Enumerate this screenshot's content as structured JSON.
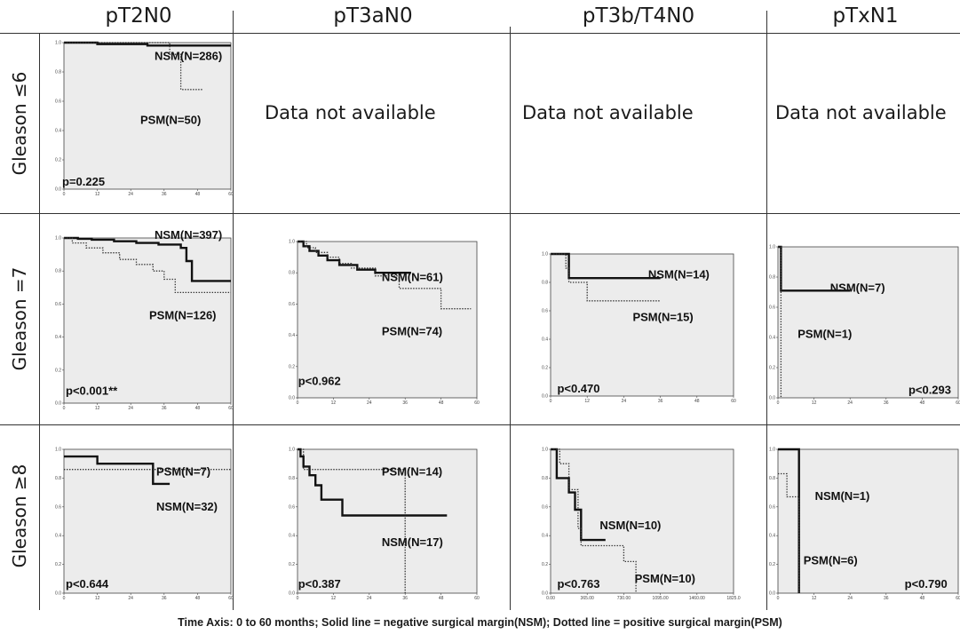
{
  "columns": [
    "pT2N0",
    "pT3aN0",
    "pT3b/T4N0",
    "pTxN1"
  ],
  "rows": [
    "Gleason ≤6",
    "Gleason =7",
    "Gleason ≥8"
  ],
  "not_available_text": "Data not available",
  "footer": "Time Axis: 0 to 60 months; Solid line = negative surgical margin(NSM); Dotted line = positive surgical margin(PSM)",
  "chart_data": [
    {
      "id": "r1c1",
      "type": "line",
      "row": "Gleason ≤6",
      "column": "pT2N0",
      "xlim": [
        0,
        60
      ],
      "ylim": [
        0,
        1
      ],
      "xticks": [
        "0",
        "12",
        "24",
        "36",
        "48",
        "60"
      ],
      "yticks": [
        "0.0",
        "0.2",
        "0.4",
        "0.6",
        "0.8",
        "1.0"
      ],
      "series": [
        {
          "name": "NSM(N=286)",
          "style": "solid",
          "steps": [
            [
              0,
              1.0
            ],
            [
              12,
              0.99
            ],
            [
              30,
              0.98
            ],
            [
              60,
              0.98
            ]
          ]
        },
        {
          "name": "PSM(N=50)",
          "style": "dotted",
          "steps": [
            [
              0,
              1.0
            ],
            [
              38,
              1.0
            ],
            [
              38,
              0.92
            ],
            [
              42,
              0.92
            ],
            [
              42,
              0.68
            ],
            [
              50,
              0.68
            ]
          ]
        }
      ],
      "pvalue": "p=0.225"
    },
    {
      "id": "r2c1",
      "type": "line",
      "row": "Gleason =7",
      "column": "pT2N0",
      "xlim": [
        0,
        60
      ],
      "ylim": [
        0,
        1
      ],
      "xticks": [
        "0",
        "12",
        "24",
        "36",
        "48",
        "60"
      ],
      "yticks": [
        "0.0",
        "0.2",
        "0.4",
        "0.6",
        "0.8",
        "1.0"
      ],
      "series": [
        {
          "name": "NSM(N=397)",
          "style": "solid",
          "steps": [
            [
              0,
              1.0
            ],
            [
              5,
              0.995
            ],
            [
              10,
              0.99
            ],
            [
              18,
              0.98
            ],
            [
              26,
              0.97
            ],
            [
              34,
              0.96
            ],
            [
              42,
              0.94
            ],
            [
              44,
              0.86
            ],
            [
              46,
              0.74
            ],
            [
              60,
              0.74
            ]
          ]
        },
        {
          "name": "PSM(N=126)",
          "style": "dotted",
          "steps": [
            [
              0,
              1.0
            ],
            [
              3,
              0.97
            ],
            [
              8,
              0.94
            ],
            [
              14,
              0.91
            ],
            [
              20,
              0.87
            ],
            [
              26,
              0.84
            ],
            [
              32,
              0.8
            ],
            [
              36,
              0.75
            ],
            [
              40,
              0.67
            ],
            [
              60,
              0.67
            ]
          ]
        }
      ],
      "pvalue": "p<0.001**"
    },
    {
      "id": "r2c2",
      "type": "line",
      "row": "Gleason =7",
      "column": "pT3aN0",
      "xlim": [
        0,
        60
      ],
      "ylim": [
        0,
        1
      ],
      "xticks": [
        "0",
        "12",
        "24",
        "36",
        "48",
        "60"
      ],
      "yticks": [
        "0.0",
        "0.2",
        "0.4",
        "0.6",
        "0.8",
        "1.0"
      ],
      "series": [
        {
          "name": "NSM(N=61)",
          "style": "solid",
          "steps": [
            [
              0,
              1.0
            ],
            [
              2,
              0.97
            ],
            [
              4,
              0.94
            ],
            [
              7,
              0.91
            ],
            [
              10,
              0.88
            ],
            [
              14,
              0.85
            ],
            [
              20,
              0.82
            ],
            [
              26,
              0.8
            ],
            [
              38,
              0.8
            ]
          ]
        },
        {
          "name": "PSM(N=74)",
          "style": "dotted",
          "steps": [
            [
              0,
              1.0
            ],
            [
              3,
              0.96
            ],
            [
              6,
              0.93
            ],
            [
              10,
              0.9
            ],
            [
              14,
              0.86
            ],
            [
              18,
              0.83
            ],
            [
              26,
              0.78
            ],
            [
              34,
              0.7
            ],
            [
              48,
              0.57
            ],
            [
              58,
              0.57
            ]
          ]
        }
      ],
      "pvalue": "p<0.962"
    },
    {
      "id": "r2c3",
      "type": "line",
      "row": "Gleason =7",
      "column": "pT3b/T4N0",
      "xlim": [
        0,
        60
      ],
      "ylim": [
        0,
        1
      ],
      "xticks": [
        "0",
        "12",
        "24",
        "36",
        "48",
        "60"
      ],
      "yticks": [
        "0.0",
        "0.2",
        "0.4",
        "0.6",
        "0.8",
        "1.0"
      ],
      "series": [
        {
          "name": "NSM(N=14)",
          "style": "solid",
          "steps": [
            [
              0,
              1.0
            ],
            [
              6,
              1.0
            ],
            [
              6,
              0.83
            ],
            [
              36,
              0.83
            ]
          ]
        },
        {
          "name": "PSM(N=15)",
          "style": "dotted",
          "steps": [
            [
              0,
              1.0
            ],
            [
              5,
              0.9
            ],
            [
              6,
              0.8
            ],
            [
              12,
              0.67
            ],
            [
              36,
              0.67
            ]
          ]
        }
      ],
      "pvalue": "p<0.470"
    },
    {
      "id": "r2c4",
      "type": "line",
      "row": "Gleason =7",
      "column": "pTxN1",
      "xlim": [
        0,
        60
      ],
      "ylim": [
        0,
        1
      ],
      "xticks": [
        "0",
        "12",
        "24",
        "36",
        "48",
        "60"
      ],
      "yticks": [
        "0.0",
        "0.2",
        "0.4",
        "0.6",
        "0.8",
        "1.0"
      ],
      "series": [
        {
          "name": "NSM(N=7)",
          "style": "solid",
          "steps": [
            [
              0,
              1.0
            ],
            [
              1,
              1.0
            ],
            [
              1,
              0.71
            ],
            [
              24,
              0.71
            ]
          ]
        },
        {
          "name": "PSM(N=1)",
          "style": "dotted",
          "steps": [
            [
              0,
              1.0
            ],
            [
              1,
              1.0
            ],
            [
              1,
              0.0
            ]
          ]
        }
      ],
      "pvalue": "p<0.293"
    },
    {
      "id": "r3c1",
      "type": "line",
      "row": "Gleason ≥8",
      "column": "pT2N0",
      "xlim": [
        0,
        60
      ],
      "ylim": [
        0,
        1
      ],
      "xticks": [
        "0",
        "12",
        "24",
        "36",
        "48",
        "60"
      ],
      "yticks": [
        "0.0",
        "0.2",
        "0.4",
        "0.6",
        "0.8",
        "1.0"
      ],
      "series": [
        {
          "name": "PSM(N=7)",
          "style": "dotted",
          "steps": [
            [
              0,
              0.86
            ],
            [
              60,
              0.86
            ]
          ]
        },
        {
          "name": "NSM(N=32)",
          "style": "solid",
          "steps": [
            [
              0,
              0.95
            ],
            [
              12,
              0.9
            ],
            [
              32,
              0.9
            ],
            [
              32,
              0.76
            ],
            [
              38,
              0.76
            ]
          ]
        }
      ],
      "pvalue": "p<0.644"
    },
    {
      "id": "r3c2",
      "type": "line",
      "row": "Gleason ≥8",
      "column": "pT3aN0",
      "xlim": [
        0,
        60
      ],
      "ylim": [
        0,
        1
      ],
      "xticks": [
        "0",
        "12",
        "24",
        "36",
        "48",
        "60"
      ],
      "yticks": [
        "0.0",
        "0.2",
        "0.4",
        "0.6",
        "0.8",
        "1.0"
      ],
      "series": [
        {
          "name": "PSM(N=14)",
          "style": "dotted",
          "steps": [
            [
              0,
              1.0
            ],
            [
              2,
              0.86
            ],
            [
              36,
              0.86
            ],
            [
              36,
              0.0
            ]
          ]
        },
        {
          "name": "NSM(N=17)",
          "style": "solid",
          "steps": [
            [
              0,
              1.0
            ],
            [
              1,
              0.95
            ],
            [
              2,
              0.88
            ],
            [
              4,
              0.82
            ],
            [
              6,
              0.75
            ],
            [
              8,
              0.65
            ],
            [
              15,
              0.65
            ],
            [
              15,
              0.54
            ],
            [
              50,
              0.54
            ]
          ]
        }
      ],
      "pvalue": "p<0.387"
    },
    {
      "id": "r3c3",
      "type": "line",
      "row": "Gleason ≥8",
      "column": "pT3b/T4N0",
      "xlim": [
        0,
        60
      ],
      "ylim": [
        0,
        1
      ],
      "xticks": [
        "0.00",
        "365.00",
        "730.00",
        "1095.00",
        "1460.00",
        "1825.0"
      ],
      "yticks": [
        "0.0",
        "0.2",
        "0.4",
        "0.6",
        "0.8",
        "1.0"
      ],
      "series": [
        {
          "name": "NSM(N=10)",
          "style": "solid",
          "steps": [
            [
              0,
              1.0
            ],
            [
              2,
              0.8
            ],
            [
              6,
              0.8
            ],
            [
              6,
              0.7
            ],
            [
              8,
              0.58
            ],
            [
              10,
              0.37
            ],
            [
              18,
              0.37
            ]
          ]
        },
        {
          "name": "PSM(N=10)",
          "style": "dotted",
          "steps": [
            [
              0,
              1.0
            ],
            [
              3,
              0.9
            ],
            [
              6,
              0.72
            ],
            [
              9,
              0.45
            ],
            [
              10,
              0.33
            ],
            [
              24,
              0.33
            ],
            [
              24,
              0.22
            ],
            [
              28,
              0.0
            ]
          ]
        }
      ],
      "pvalue": "p<0.763"
    },
    {
      "id": "r3c4",
      "type": "line",
      "row": "Gleason ≥8",
      "column": "pTxN1",
      "xlim": [
        0,
        60
      ],
      "ylim": [
        0,
        1
      ],
      "xticks": [
        "0",
        "12",
        "24",
        "36",
        "48",
        "60"
      ],
      "yticks": [
        "0.0",
        "0.2",
        "0.4",
        "0.6",
        "0.8",
        "1.0"
      ],
      "series": [
        {
          "name": "NSM(N=1)",
          "style": "solid",
          "steps": [
            [
              0,
              1.0
            ],
            [
              7,
              1.0
            ],
            [
              7,
              0.0
            ]
          ]
        },
        {
          "name": "PSM(N=6)",
          "style": "dotted",
          "steps": [
            [
              0,
              0.83
            ],
            [
              3,
              0.67
            ],
            [
              7,
              0.67
            ],
            [
              7,
              0.0
            ]
          ]
        }
      ],
      "pvalue": "p<0.790"
    }
  ]
}
